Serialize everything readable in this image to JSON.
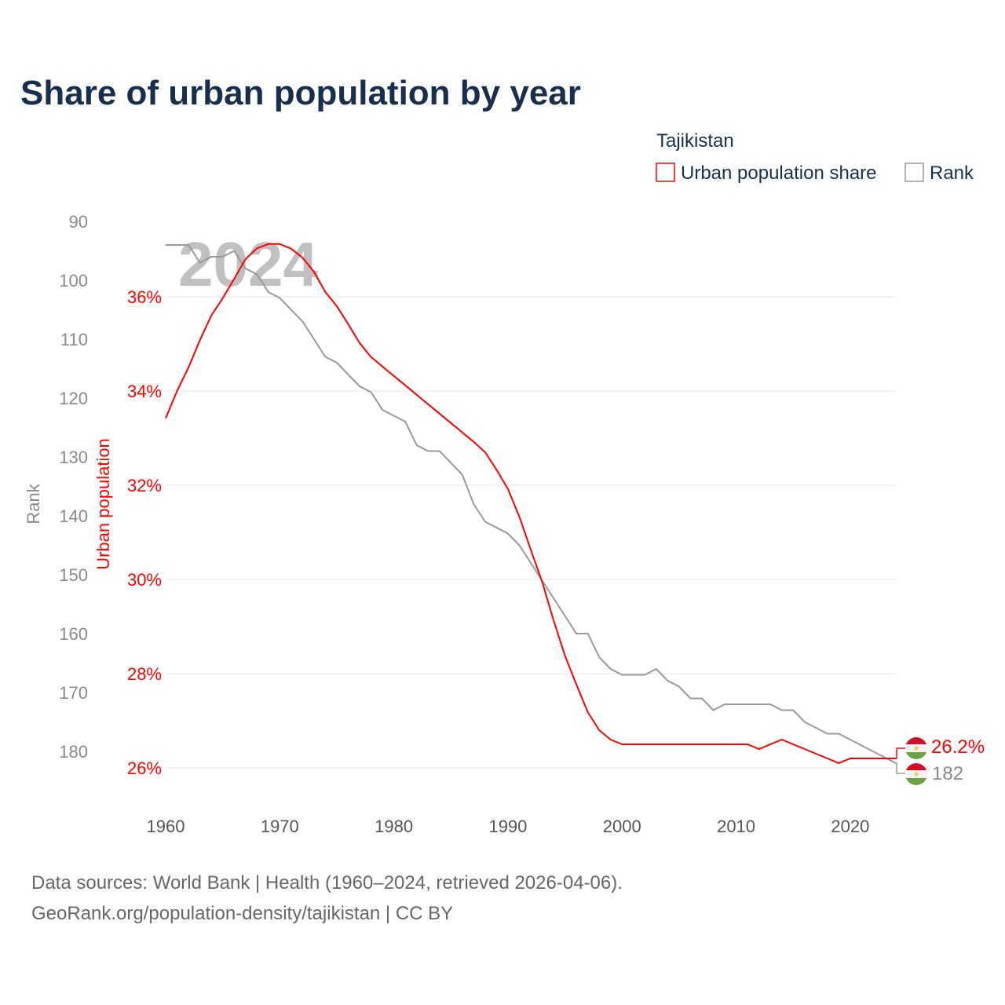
{
  "colors": {
    "urban": "#ff0000",
    "rank": "#999999",
    "title": "#172f4f",
    "grid": "#e6e6e6"
  },
  "chart_data": {
    "type": "line",
    "title": "Share of urban population by year",
    "legend": {
      "title": "Tajikistan",
      "position": "top-right",
      "entries": [
        "Urban population share",
        "Rank"
      ]
    },
    "watermark": "2024",
    "xlabel": "",
    "y_left_outer_label": "Rank",
    "y_left_inner_label": "Urban population",
    "x_ticks": [
      "1960",
      "1970",
      "1980",
      "1990",
      "2000",
      "2010",
      "2020"
    ],
    "x_tick_values": [
      1960,
      1970,
      1980,
      1990,
      2000,
      2010,
      2020
    ],
    "xlim": [
      1960,
      2024
    ],
    "rank_ticks": [
      "90",
      "100",
      "110",
      "120",
      "130",
      "140",
      "150",
      "160",
      "170",
      "180"
    ],
    "rank_tick_values": [
      90,
      100,
      110,
      120,
      130,
      140,
      150,
      160,
      170,
      180
    ],
    "rank_lim": [
      90,
      180
    ],
    "pct_ticks": [
      "36%",
      "34%",
      "32%",
      "30%",
      "28%",
      "26%"
    ],
    "pct_tick_values": [
      36,
      34,
      32,
      30,
      28,
      26
    ],
    "pct_lim": [
      26,
      36
    ],
    "grid": true,
    "x": [
      1960,
      1961,
      1962,
      1963,
      1964,
      1965,
      1966,
      1967,
      1968,
      1969,
      1970,
      1971,
      1972,
      1973,
      1974,
      1975,
      1976,
      1977,
      1978,
      1979,
      1980,
      1981,
      1982,
      1983,
      1984,
      1985,
      1986,
      1987,
      1988,
      1989,
      1990,
      1991,
      1992,
      1993,
      1994,
      1995,
      1996,
      1997,
      1998,
      1999,
      2000,
      2001,
      2002,
      2003,
      2004,
      2005,
      2006,
      2007,
      2008,
      2009,
      2010,
      2011,
      2012,
      2013,
      2014,
      2015,
      2016,
      2017,
      2018,
      2019,
      2020,
      2021,
      2022,
      2023,
      2024
    ],
    "series": [
      {
        "name": "Urban population share",
        "unit": "%",
        "values": [
          33.42,
          34.0,
          34.5,
          35.08,
          35.6,
          35.97,
          36.38,
          36.8,
          37.03,
          37.12,
          37.12,
          37.02,
          36.83,
          36.53,
          36.1,
          35.8,
          35.42,
          35.02,
          34.72,
          34.52,
          34.32,
          34.12,
          33.92,
          33.72,
          33.52,
          33.32,
          33.12,
          32.92,
          32.7,
          32.33,
          31.92,
          31.33,
          30.63,
          29.95,
          29.13,
          28.38,
          27.77,
          27.18,
          26.8,
          26.6,
          26.5,
          26.5,
          26.5,
          26.5,
          26.5,
          26.5,
          26.5,
          26.5,
          26.5,
          26.5,
          26.5,
          26.5,
          26.4,
          26.5,
          26.6,
          26.5,
          26.4,
          26.3,
          26.2,
          26.1,
          26.2,
          26.2,
          26.2,
          26.2,
          26.2
        ]
      },
      {
        "name": "Rank",
        "values": [
          94,
          94,
          94,
          97,
          96,
          96,
          95,
          98,
          99,
          102,
          103,
          105,
          107,
          110,
          113,
          114,
          116,
          118,
          119,
          122,
          123,
          124,
          128,
          129,
          129,
          131,
          133,
          138,
          141,
          142,
          143,
          145,
          148,
          151,
          154,
          157,
          160,
          160,
          164,
          166,
          167,
          167,
          167,
          166,
          168,
          169,
          171,
          171,
          173,
          172,
          172,
          172,
          172,
          172,
          173,
          173,
          175,
          176,
          177,
          177,
          178,
          179,
          180,
          181,
          182
        ]
      }
    ],
    "end_labels": {
      "urban": "26.2%",
      "rank": "182"
    }
  },
  "footer": {
    "line1": "Data sources: World Bank | Health (1960–2024, retrieved 2026-04-06).",
    "line2": "GeoRank.org/population-density/tajikistan | CC BY"
  }
}
